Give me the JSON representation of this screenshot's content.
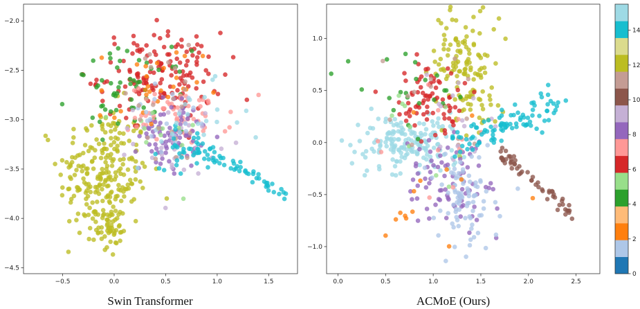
{
  "chart_data": [
    {
      "type": "scatter",
      "caption": "Swin Transformer",
      "xlim": [
        -0.88,
        1.78
      ],
      "ylim": [
        -4.56,
        -1.83
      ],
      "xticks": [
        -0.5,
        0.0,
        0.5,
        1.0,
        1.5
      ],
      "xtick_labels": [
        "−0.5",
        "0.0",
        "0.5",
        "1.0",
        "1.5"
      ],
      "yticks": [
        -2.0,
        -2.5,
        -3.0,
        -3.5,
        -4.0,
        -4.5
      ],
      "ytick_labels": [
        "−2.0",
        "−2.5",
        "−3.0",
        "−3.5",
        "−4.0",
        "−4.5"
      ],
      "grid": false,
      "clusters": [
        {
          "class": 12,
          "count": 240,
          "cx": -0.1,
          "cy": -3.55,
          "sx": 0.22,
          "sy": 0.34,
          "extra": [
            [
              -0.05,
              -4.1,
              0.06,
              0.14,
              45
            ]
          ]
        },
        {
          "class": 6,
          "count": 150,
          "cx": 0.45,
          "cy": -2.55,
          "sx": 0.3,
          "sy": 0.22
        },
        {
          "class": 4,
          "count": 55,
          "cx": 0.15,
          "cy": -2.7,
          "sx": 0.28,
          "sy": 0.2
        },
        {
          "class": 7,
          "count": 60,
          "cx": 0.65,
          "cy": -2.95,
          "sx": 0.25,
          "sy": 0.15
        },
        {
          "class": 8,
          "count": 75,
          "cx": 0.55,
          "cy": -3.15,
          "sx": 0.15,
          "sy": 0.18
        },
        {
          "class": 9,
          "count": 30,
          "cx": 0.6,
          "cy": -3.2,
          "sx": 0.2,
          "sy": 0.18
        },
        {
          "class": 2,
          "count": 28,
          "cx": 0.35,
          "cy": -2.75,
          "sx": 0.25,
          "sy": 0.25
        },
        {
          "class": 5,
          "count": 12,
          "cx": 0.4,
          "cy": -3.2,
          "sx": 0.2,
          "sy": 0.2
        },
        {
          "class": 1,
          "count": 20,
          "cx": 0.5,
          "cy": -3.0,
          "sx": 0.25,
          "sy": 0.25
        },
        {
          "class": 11,
          "count": 22,
          "cx": 0.5,
          "cy": -2.9,
          "sx": 0.3,
          "sy": 0.3
        },
        {
          "class": 14,
          "count": 40,
          "cx": 0.75,
          "cy": -3.3,
          "sx": 0.15,
          "sy": 0.1
        },
        {
          "class": 15,
          "count": 20,
          "cx": 0.7,
          "cy": -3.05,
          "sx": 0.3,
          "sy": 0.2
        }
      ],
      "arcs": [
        {
          "class": 14,
          "count": 45,
          "x0": 0.85,
          "x1": 1.68,
          "curve": [
            -3.35,
            -3.45,
            -3.6,
            -3.78
          ],
          "jitter": 0.035
        }
      ]
    },
    {
      "type": "scatter",
      "caption": "ACMoE (Ours)",
      "xlim": [
        -0.12,
        2.75
      ],
      "ylim": [
        -1.26,
        1.33
      ],
      "xticks": [
        0.0,
        0.5,
        1.0,
        1.5,
        2.0,
        2.5
      ],
      "xtick_labels": [
        "0.0",
        "0.5",
        "1.0",
        "1.5",
        "2.0",
        "2.5"
      ],
      "yticks": [
        1.0,
        0.5,
        0.0,
        -0.5,
        -1.0
      ],
      "ytick_labels": [
        "1.0",
        "0.5",
        "0.0",
        "−0.5",
        "−1.0"
      ],
      "grid": false,
      "clusters": [
        {
          "class": 15,
          "count": 170,
          "cx": 0.75,
          "cy": 0.0,
          "sx": 0.28,
          "sy": 0.15
        },
        {
          "class": 12,
          "count": 140,
          "cx": 1.35,
          "cy": 0.7,
          "sx": 0.18,
          "sy": 0.3
        },
        {
          "class": 6,
          "count": 75,
          "cx": 0.95,
          "cy": 0.4,
          "sx": 0.2,
          "sy": 0.18
        },
        {
          "class": 8,
          "count": 80,
          "cx": 1.15,
          "cy": -0.35,
          "sx": 0.22,
          "sy": 0.25
        },
        {
          "class": 1,
          "count": 90,
          "cx": 1.3,
          "cy": -0.55,
          "sx": 0.15,
          "sy": 0.22
        },
        {
          "class": 4,
          "count": 22,
          "cx": 0.7,
          "cy": 0.5,
          "sx": 0.3,
          "sy": 0.2
        },
        {
          "class": 2,
          "count": 14,
          "cx": 0.9,
          "cy": -0.5,
          "sx": 0.3,
          "sy": 0.3
        },
        {
          "class": 5,
          "count": 10,
          "cx": 0.9,
          "cy": 0.0,
          "sx": 0.4,
          "sy": 0.4
        },
        {
          "class": 11,
          "count": 14,
          "cx": 1.1,
          "cy": 0.3,
          "sx": 0.3,
          "sy": 0.3
        },
        {
          "class": 9,
          "count": 14,
          "cx": 1.2,
          "cy": 0.3,
          "sx": 0.2,
          "sy": 0.2
        },
        {
          "class": 7,
          "count": 12,
          "cx": 1.1,
          "cy": 0.0,
          "sx": 0.3,
          "sy": 0.3
        }
      ],
      "arcs": [
        {
          "class": 14,
          "count": 95,
          "x0": 1.25,
          "x1": 2.35,
          "curve": [
            0.0,
            0.12,
            0.25,
            0.4
          ],
          "jitter": 0.07
        },
        {
          "class": 10,
          "count": 55,
          "x0": 1.7,
          "x1": 2.5,
          "curve": [
            -0.1,
            -0.3,
            -0.5,
            -0.75
          ],
          "jitter": 0.04
        }
      ]
    }
  ],
  "colorbar": {
    "ticks": [
      0,
      2,
      4,
      6,
      8,
      10,
      12,
      14
    ],
    "min": 0,
    "max": 15.5,
    "colors": [
      "#1f77b4",
      "#aec7e8",
      "#ff7f0e",
      "#ffbb78",
      "#2ca02c",
      "#98df8a",
      "#d62728",
      "#ff9896",
      "#9467bd",
      "#c5b0d5",
      "#8c564b",
      "#c49c94",
      "#e377c2",
      "#f7b6d2",
      "#7f7f7f",
      "#c7c7c7",
      "#bcbd22",
      "#dbdb8d",
      "#17becf",
      "#9edae5"
    ],
    "class_palette_index": [
      0,
      1,
      2,
      3,
      4,
      5,
      6,
      7,
      8,
      9,
      10,
      11,
      16,
      17,
      18,
      19
    ]
  }
}
